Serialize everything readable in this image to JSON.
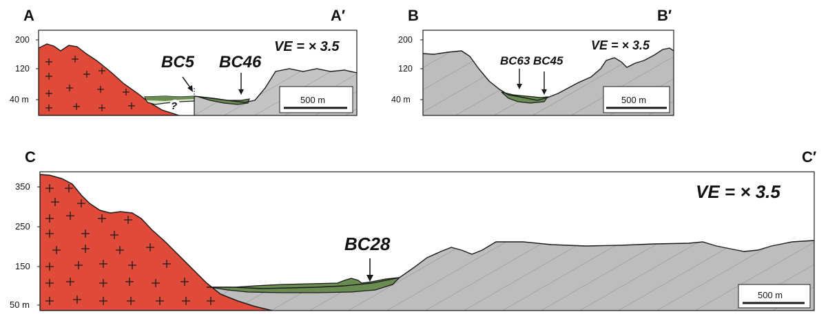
{
  "colors": {
    "granite": "#e04a38",
    "sediment": "#b8b8b8",
    "infill": "#6a8c52",
    "infill_light": "#d9e8cc",
    "outline": "#1a1a1a"
  },
  "panels": {
    "a": {
      "start_label": "A",
      "end_label": "A′",
      "y_ticks": [
        "200",
        "120",
        "40 m"
      ],
      "ve_label": "VE = × 3.5",
      "samples": [
        {
          "label": "BC5"
        },
        {
          "label": "BC46"
        }
      ],
      "question_mark": "?",
      "scale_bar": "500 m"
    },
    "b": {
      "start_label": "B",
      "end_label": "B′",
      "y_ticks": [
        "200",
        "120",
        "40 m"
      ],
      "ve_label": "VE = × 3.5",
      "samples": [
        {
          "label": "BC63"
        },
        {
          "label": "BC45"
        }
      ],
      "scale_bar": "500 m"
    },
    "c": {
      "start_label": "C",
      "end_label": "C′",
      "y_ticks": [
        "350",
        "250",
        "150",
        "50 m"
      ],
      "ve_label": "VE = × 3.5",
      "samples": [
        {
          "label": "BC28"
        }
      ],
      "scale_bar": "500 m"
    }
  }
}
